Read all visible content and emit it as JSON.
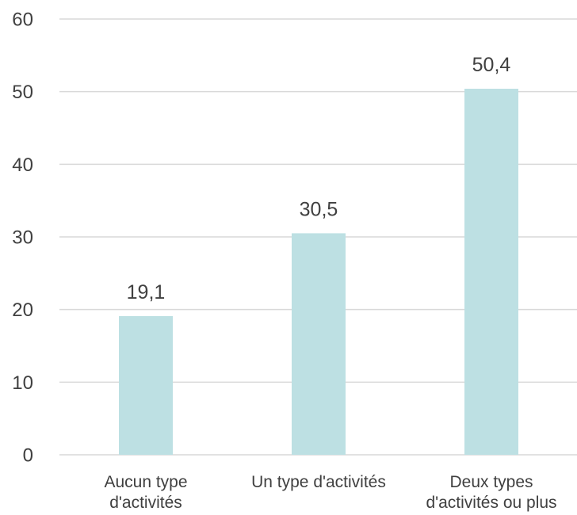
{
  "chart_data": {
    "type": "bar",
    "categories": [
      [
        "Aucun type",
        "d'activités"
      ],
      [
        "Un type d'activités"
      ],
      [
        "Deux types",
        "d'activités ou plus"
      ]
    ],
    "values": [
      19.1,
      30.5,
      50.4
    ],
    "value_labels": [
      "19,1",
      "30,5",
      "50,4"
    ],
    "ylim": [
      0,
      60
    ],
    "yticks": [
      0,
      10,
      20,
      30,
      40,
      50,
      60
    ],
    "grid": true,
    "legend": "none",
    "title": "",
    "xlabel": "",
    "ylabel": "",
    "colors": {
      "bar": "#bde0e3",
      "text": "#404040",
      "grid": "#d9d9d9"
    }
  }
}
